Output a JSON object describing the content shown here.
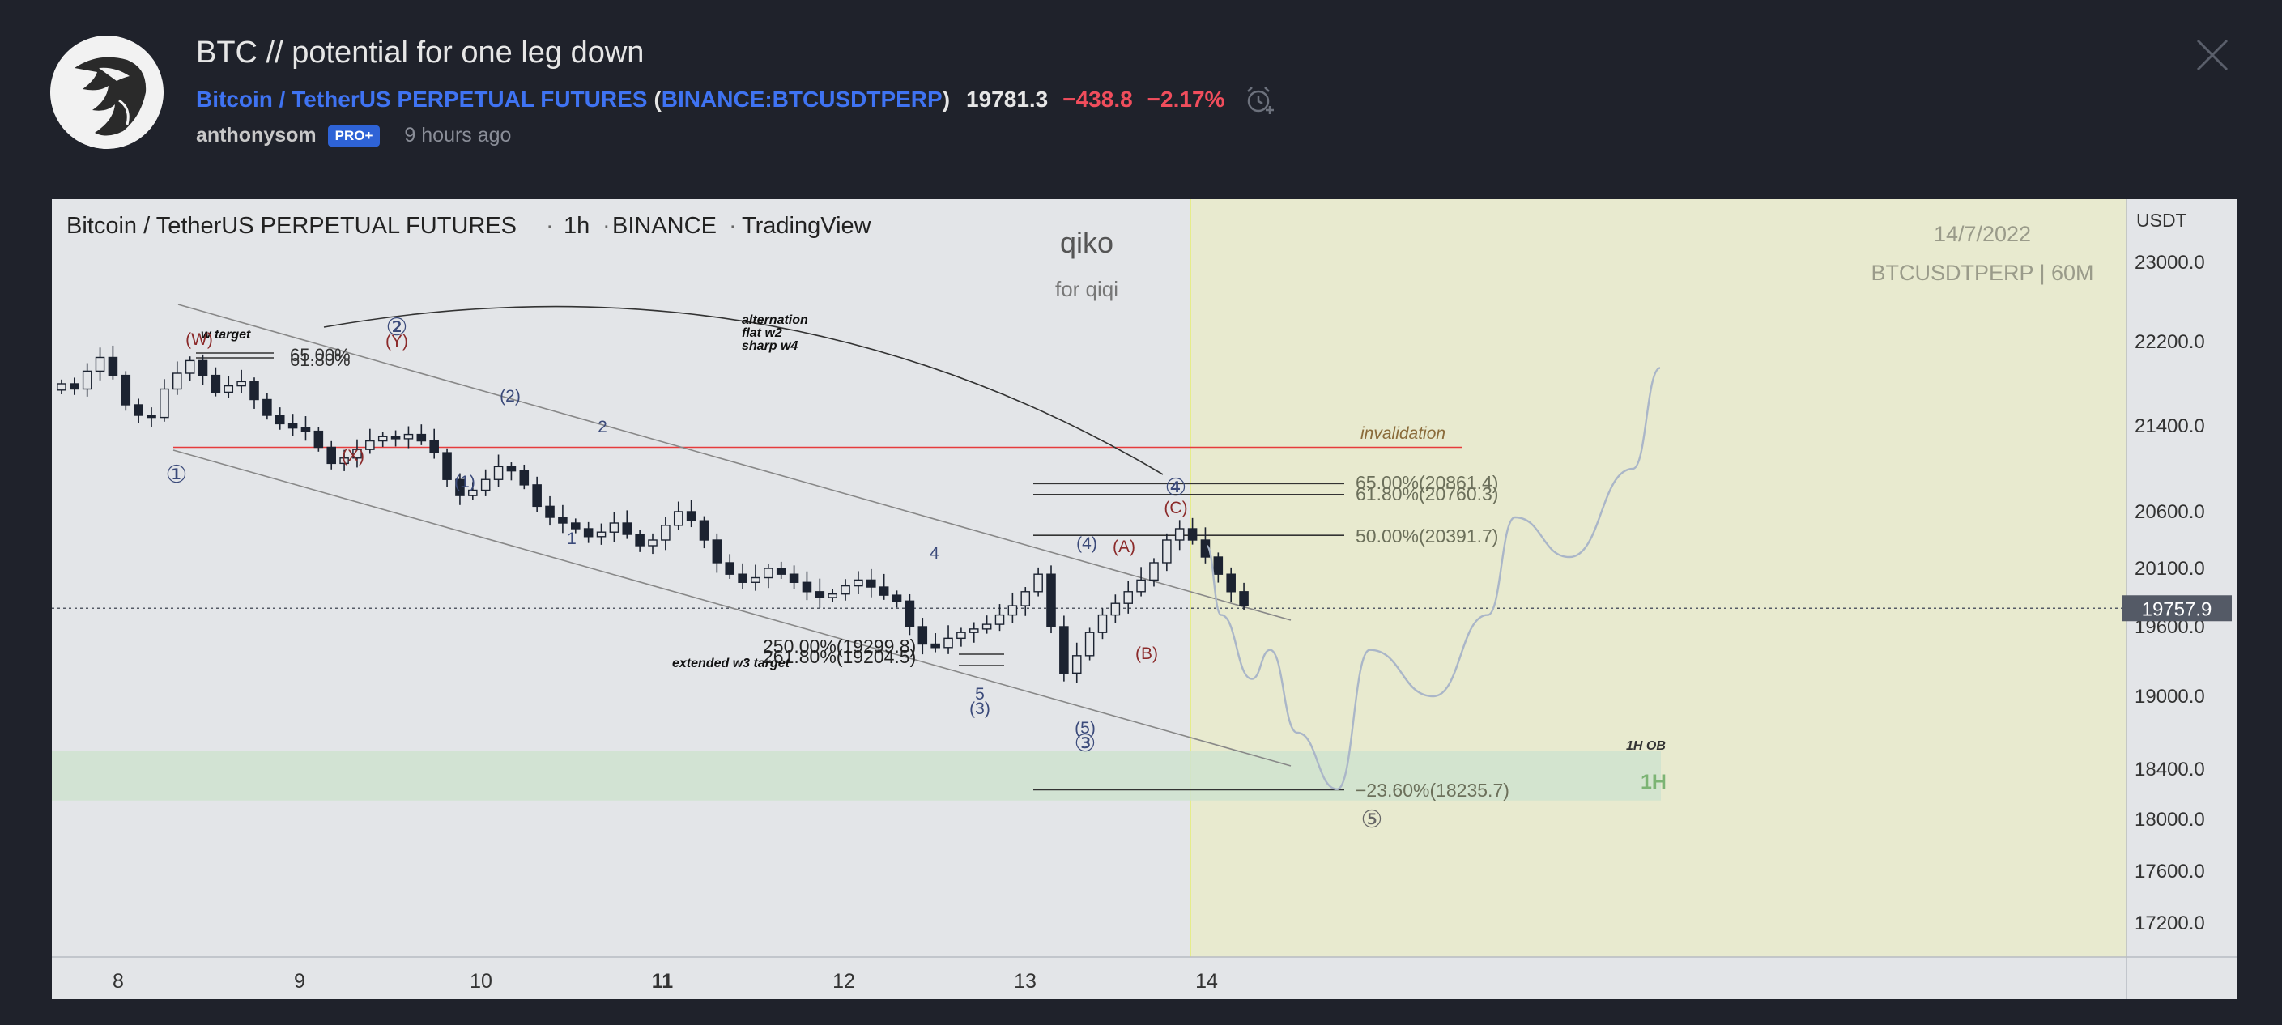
{
  "idea": {
    "title": "BTC // potential for one leg down",
    "symbol_name": "Bitcoin / TetherUS PERPETUAL FUTURES",
    "paren_open": "(",
    "ticker": "BINANCE:BTCUSDTPERP",
    "paren_close": ")",
    "price": "19781.3",
    "change": "−438.8",
    "change_pct": "−2.17%",
    "author": "anthonysom",
    "badge": "PRO+",
    "time_ago": "9 hours ago"
  },
  "icons": {
    "avatar": "wolf-avatar-icon",
    "alarm": "alarm-clock-icon",
    "close": "close-icon"
  },
  "colors": {
    "background": "#1f222b",
    "link": "#3f73f2",
    "negative": "#f04d5c",
    "badge": "#2e63d6",
    "chart_bg": "#e3e5e8",
    "zone": "#e8eacf",
    "ob_zone": "#cfe3cf",
    "invalidation": "#e63c3c",
    "candle": "#1c2331",
    "wave_label": "#3b4a7a",
    "alt_wave_label": "#8b2a2a"
  },
  "chart_header": {
    "symbol": "Bitcoin / TetherUS PERPETUAL FUTURES",
    "interval": "1h",
    "exchange": "BINANCE",
    "source": "TradingView",
    "sep": "·"
  },
  "watermark": {
    "name": "qiko",
    "sub": "for qiqi"
  },
  "stamp": {
    "date": "14/7/2022",
    "symbol": "BTCUSDTPERP | 60M"
  },
  "price_axis": {
    "currency": "USDT",
    "current_price": "19757.9"
  },
  "annotations": {
    "invalidation": "invalidation",
    "alternation": [
      "alternation",
      "flat w2",
      "sharp w4"
    ],
    "extended_w3": "extended w3 target",
    "w_target": "w target",
    "ob_small": "1H OB",
    "ob_big": "1H"
  },
  "chart_data": {
    "type": "candlestick",
    "title": "",
    "xlabel": "",
    "ylabel": "USDT",
    "x_ticks": [
      "8",
      "9",
      "10",
      "11",
      "12",
      "13",
      "14"
    ],
    "y_ticks": [
      "23000.0",
      "22200.0",
      "21400.0",
      "20600.0",
      "20100.0",
      "19600.0",
      "19000.0",
      "18400.0",
      "18000.0",
      "17600.0",
      "17200.0"
    ],
    "ylim": [
      16900,
      23500
    ],
    "current_price": 19757.9,
    "invalidation_level": 21200,
    "ob_zone": [
      18150,
      18550
    ],
    "fib_levels": [
      {
        "label": "65.00%(20861.4)",
        "value": 20861.4
      },
      {
        "label": "61.80%(20760.3)",
        "value": 20760.3
      },
      {
        "label": "50.00%(20391.7)",
        "value": 20391.7
      },
      {
        "label": "−23.60%(18235.7)",
        "value": 18235.7
      }
    ],
    "left_fib": [
      "65.00%",
      "61.80%"
    ],
    "w3_fib": [
      "250.00%(19299.8)",
      "261.80%(19204.5)"
    ],
    "wave_labels": [
      "①",
      "②",
      "③",
      "④",
      "⑤",
      "(1)",
      "(2)",
      "(3)",
      "(4)",
      "(5)",
      "1",
      "2",
      "4",
      "5",
      "(W)",
      "(X)",
      "(Y)",
      "(A)",
      "(B)",
      "(C)"
    ],
    "projection_path": [
      [
        14.0,
        20300
      ],
      [
        14.08,
        19700
      ],
      [
        14.25,
        19150
      ],
      [
        14.35,
        19400
      ],
      [
        14.5,
        18700
      ],
      [
        14.72,
        18240
      ],
      [
        14.9,
        19400
      ],
      [
        15.25,
        19000
      ],
      [
        15.55,
        19700
      ],
      [
        15.7,
        20550
      ],
      [
        16.0,
        20200
      ],
      [
        16.35,
        21000
      ],
      [
        16.5,
        21950
      ]
    ],
    "candles_close": [
      21800,
      21750,
      21920,
      22050,
      21880,
      21600,
      21500,
      21480,
      21750,
      21900,
      22020,
      21880,
      21720,
      21780,
      21820,
      21650,
      21500,
      21420,
      21380,
      21350,
      21200,
      21050,
      21100,
      21180,
      21260,
      21300,
      21280,
      21320,
      21260,
      21150,
      20900,
      20750,
      20800,
      20900,
      21020,
      20980,
      20850,
      20650,
      20550,
      20500,
      20450,
      20380,
      20420,
      20500,
      20400,
      20300,
      20350,
      20480,
      20600,
      20520,
      20350,
      20150,
      20050,
      19980,
      20020,
      20100,
      20050,
      19980,
      19900,
      19850,
      19880,
      19950,
      20000,
      19940,
      19870,
      19820,
      19600,
      19450,
      19420,
      19500,
      19550,
      19580,
      19620,
      19700,
      19780,
      19900,
      20050,
      19600,
      19200,
      19350,
      19550,
      19700,
      19800,
      19900,
      20000,
      20150,
      20350,
      20450,
      20350,
      20200,
      20050,
      19900,
      19780
    ]
  }
}
